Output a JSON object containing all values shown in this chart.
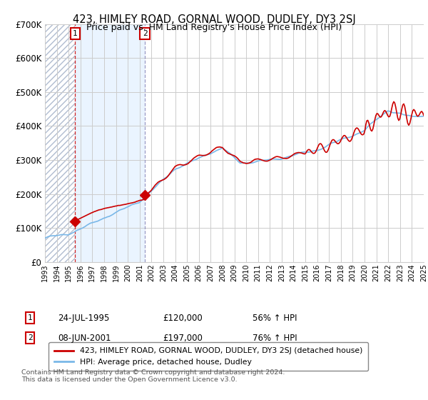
{
  "title": "423, HIMLEY ROAD, GORNAL WOOD, DUDLEY, DY3 2SJ",
  "subtitle": "Price paid vs. HM Land Registry's House Price Index (HPI)",
  "ylim": [
    0,
    700000
  ],
  "yticks": [
    0,
    100000,
    200000,
    300000,
    400000,
    500000,
    600000,
    700000
  ],
  "ytick_labels": [
    "£0",
    "£100K",
    "£200K",
    "£300K",
    "£400K",
    "£500K",
    "£600K",
    "£700K"
  ],
  "sale1_year": 1995.56,
  "sale1_price": 120000,
  "sale1_label": "1",
  "sale1_date_str": "24-JUL-1995",
  "sale1_hpi_pct": "56% ↑ HPI",
  "sale2_year": 2001.44,
  "sale2_price": 197000,
  "sale2_label": "2",
  "sale2_date_str": "08-JUN-2001",
  "sale2_hpi_pct": "76% ↑ HPI",
  "legend_line1": "423, HIMLEY ROAD, GORNAL WOOD, DUDLEY, DY3 2SJ (detached house)",
  "legend_line2": "HPI: Average price, detached house, Dudley",
  "footer": "Contains HM Land Registry data © Crown copyright and database right 2024.\nThis data is licensed under the Open Government Licence v3.0.",
  "hpi_color": "#7ab8e8",
  "price_color": "#cc0000",
  "annotation_box_color": "#cc0000",
  "xmin_year": 1993,
  "xmax_year": 2025,
  "xtick_years": [
    1993,
    1994,
    1995,
    1996,
    1997,
    1998,
    1999,
    2000,
    2001,
    2002,
    2003,
    2004,
    2005,
    2006,
    2007,
    2008,
    2009,
    2010,
    2011,
    2012,
    2013,
    2014,
    2015,
    2016,
    2017,
    2018,
    2019,
    2020,
    2021,
    2022,
    2023,
    2024,
    2025
  ]
}
